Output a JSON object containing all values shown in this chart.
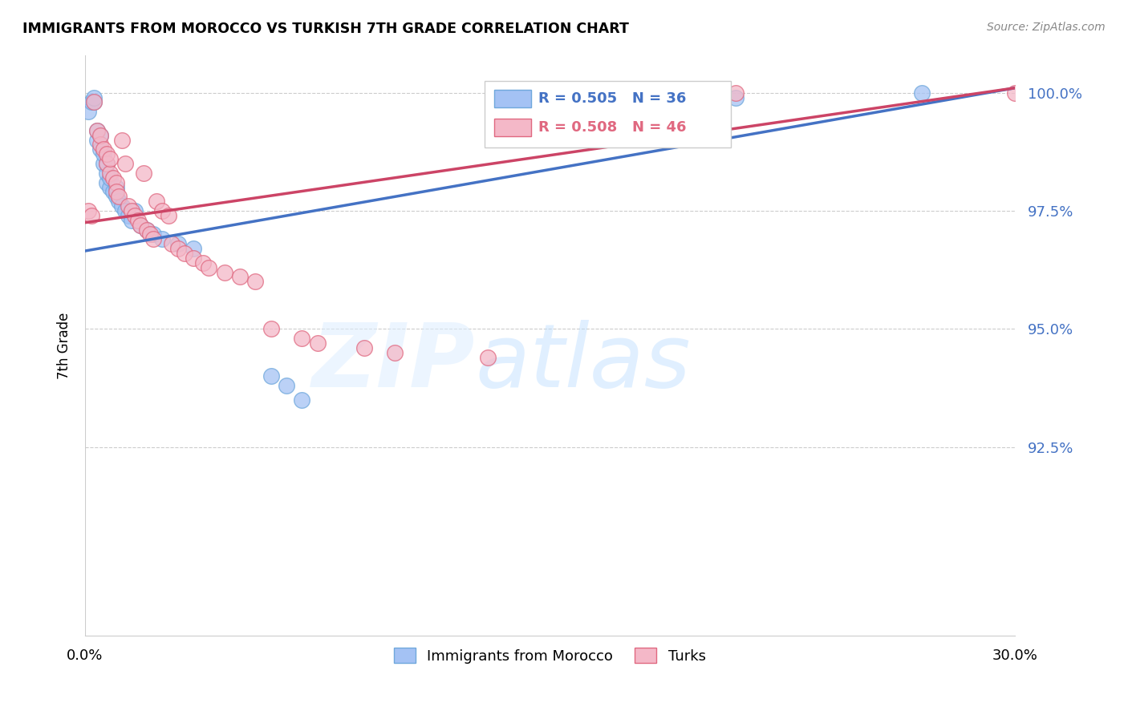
{
  "title": "IMMIGRANTS FROM MOROCCO VS TURKISH 7TH GRADE CORRELATION CHART",
  "source": "Source: ZipAtlas.com",
  "ylabel": "7th Grade",
  "ytick_vals": [
    0.925,
    0.95,
    0.975,
    1.0
  ],
  "ytick_labels": [
    "92.5%",
    "95.0%",
    "97.5%",
    "100.0%"
  ],
  "xlim": [
    0.0,
    0.3
  ],
  "ylim": [
    0.885,
    1.008
  ],
  "blue_color": "#6fa8dc",
  "blue_fill": "#a4c2f4",
  "pink_color": "#e06880",
  "pink_fill": "#f4b8c8",
  "line_blue": "#4472c4",
  "line_pink": "#cc4466",
  "legend1": "R = 0.505   N = 36",
  "legend2": "R = 0.508   N = 46",
  "blue_x": [
    0.001,
    0.002,
    0.003,
    0.003,
    0.004,
    0.004,
    0.005,
    0.005,
    0.006,
    0.006,
    0.007,
    0.007,
    0.007,
    0.008,
    0.008,
    0.009,
    0.01,
    0.01,
    0.011,
    0.012,
    0.013,
    0.014,
    0.015,
    0.016,
    0.018,
    0.02,
    0.022,
    0.025,
    0.03,
    0.035,
    0.06,
    0.065,
    0.07,
    0.2,
    0.21,
    0.27
  ],
  "blue_y": [
    0.996,
    0.998,
    0.998,
    0.999,
    0.99,
    0.992,
    0.988,
    0.991,
    0.985,
    0.987,
    0.981,
    0.983,
    0.985,
    0.98,
    0.982,
    0.979,
    0.978,
    0.98,
    0.977,
    0.976,
    0.975,
    0.974,
    0.973,
    0.975,
    0.972,
    0.971,
    0.97,
    0.969,
    0.968,
    0.967,
    0.94,
    0.938,
    0.935,
    0.999,
    0.999,
    1.0
  ],
  "pink_x": [
    0.001,
    0.002,
    0.003,
    0.004,
    0.005,
    0.005,
    0.006,
    0.007,
    0.007,
    0.008,
    0.008,
    0.009,
    0.01,
    0.01,
    0.011,
    0.012,
    0.013,
    0.014,
    0.015,
    0.016,
    0.017,
    0.018,
    0.019,
    0.02,
    0.021,
    0.022,
    0.023,
    0.025,
    0.027,
    0.028,
    0.03,
    0.032,
    0.035,
    0.038,
    0.04,
    0.045,
    0.05,
    0.055,
    0.06,
    0.07,
    0.075,
    0.09,
    0.1,
    0.13,
    0.21,
    0.3
  ],
  "pink_y": [
    0.975,
    0.974,
    0.998,
    0.992,
    0.989,
    0.991,
    0.988,
    0.985,
    0.987,
    0.983,
    0.986,
    0.982,
    0.981,
    0.979,
    0.978,
    0.99,
    0.985,
    0.976,
    0.975,
    0.974,
    0.973,
    0.972,
    0.983,
    0.971,
    0.97,
    0.969,
    0.977,
    0.975,
    0.974,
    0.968,
    0.967,
    0.966,
    0.965,
    0.964,
    0.963,
    0.962,
    0.961,
    0.96,
    0.95,
    0.948,
    0.947,
    0.946,
    0.945,
    0.944,
    1.0,
    1.0
  ]
}
